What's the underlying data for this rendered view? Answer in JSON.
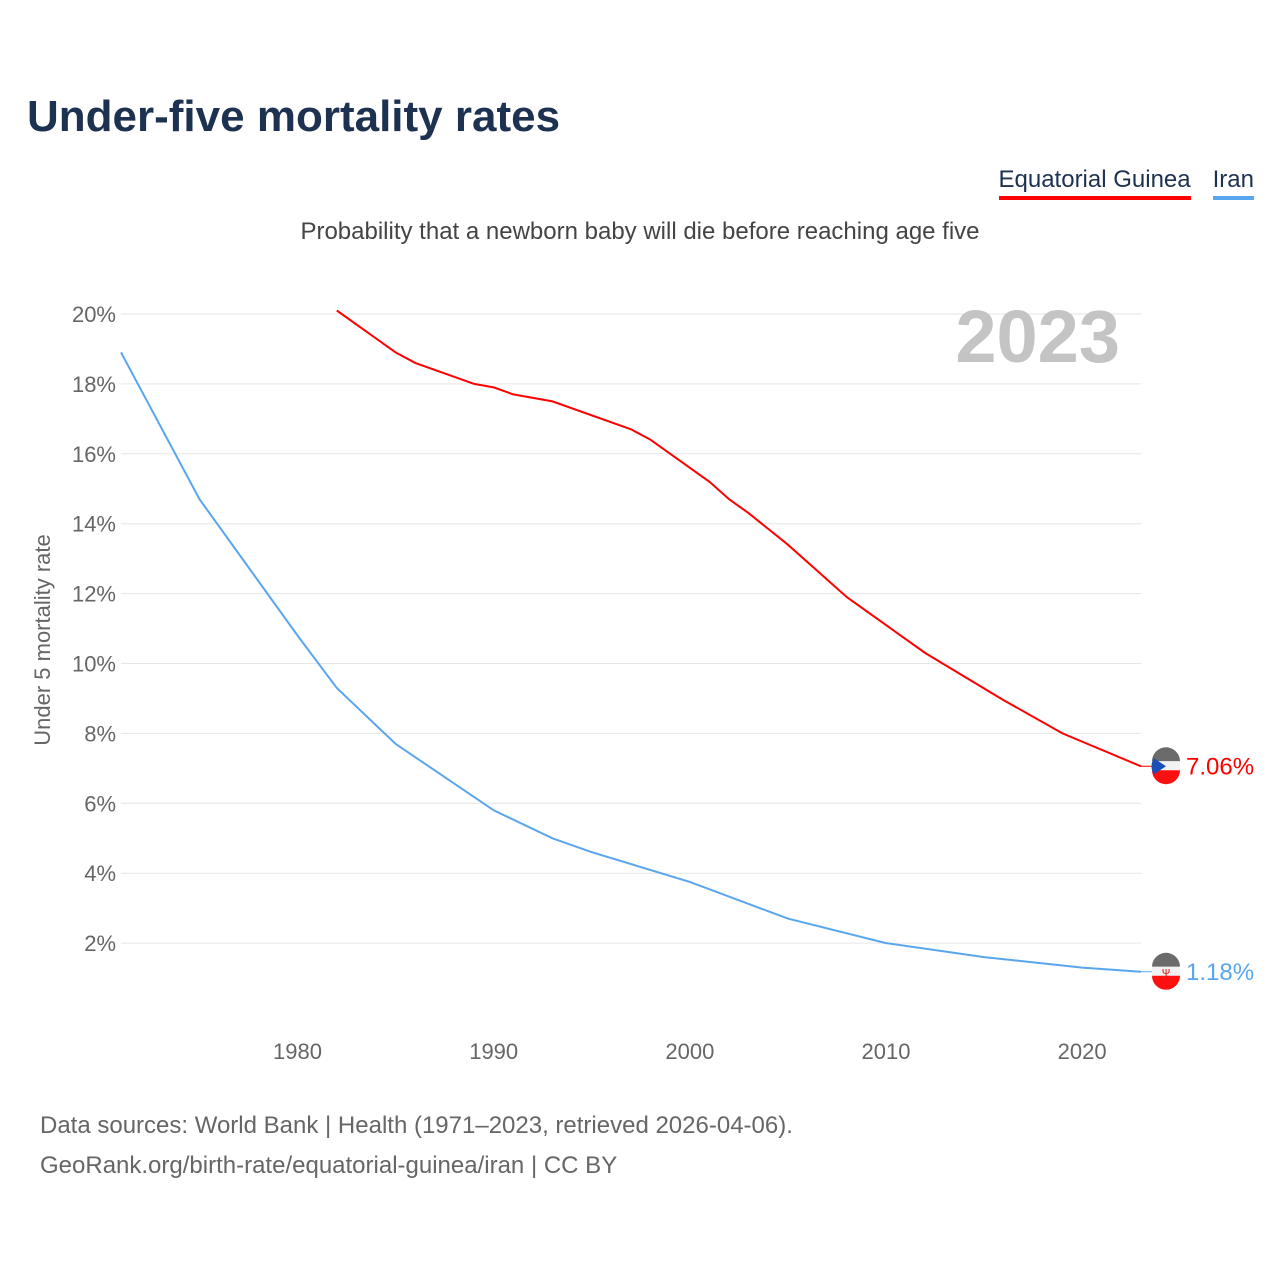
{
  "title": "Under-five mortality rates",
  "subtitle": "Probability that a newborn baby will die before reaching age five",
  "source_line1": "Data sources: World Bank | Health (1971–2023, retrieved 2026-04-06).",
  "source_line2": "GeoRank.org/birth-rate/equatorial-guinea/iran | CC BY",
  "chart_data": {
    "type": "line",
    "title": "Under-five mortality rates",
    "ylabel": "Under 5 mortality rate",
    "xlabel": "",
    "year_label": "2023",
    "xlim": [
      1971,
      2023
    ],
    "ylim": [
      0,
      20.5
    ],
    "x_ticks": [
      1980,
      1990,
      2000,
      2010,
      2020
    ],
    "y_ticks": [
      2,
      4,
      6,
      8,
      10,
      12,
      14,
      16,
      18,
      20
    ],
    "y_tick_labels": [
      "2%",
      "4%",
      "6%",
      "8%",
      "10%",
      "12%",
      "14%",
      "16%",
      "18%",
      "20%"
    ],
    "grid": true,
    "legend_position": "top-right",
    "series": [
      {
        "name": "Equatorial Guinea",
        "color": "#ff0000",
        "end_label": "7.06%",
        "x": [
          1982,
          1985,
          1986,
          1989,
          1990,
          1991,
          1993,
          1997,
          1998,
          2001,
          2002,
          2003,
          2005,
          2006,
          2008,
          2012,
          2016,
          2019,
          2023
        ],
        "y": [
          20.1,
          18.9,
          18.6,
          18.0,
          17.9,
          17.7,
          17.5,
          16.7,
          16.4,
          15.2,
          14.7,
          14.3,
          13.4,
          12.9,
          11.9,
          10.3,
          8.95,
          8.0,
          7.06
        ]
      },
      {
        "name": "Iran",
        "color": "#5aa6ee",
        "end_label": "1.18%",
        "x": [
          1971,
          1975,
          1980,
          1982,
          1985,
          1990,
          1993,
          1995,
          2000,
          2005,
          2010,
          2015,
          2020,
          2023
        ],
        "y": [
          18.9,
          14.7,
          10.8,
          9.3,
          7.7,
          5.8,
          5.0,
          4.6,
          3.75,
          2.7,
          2.0,
          1.6,
          1.3,
          1.18
        ]
      }
    ]
  }
}
